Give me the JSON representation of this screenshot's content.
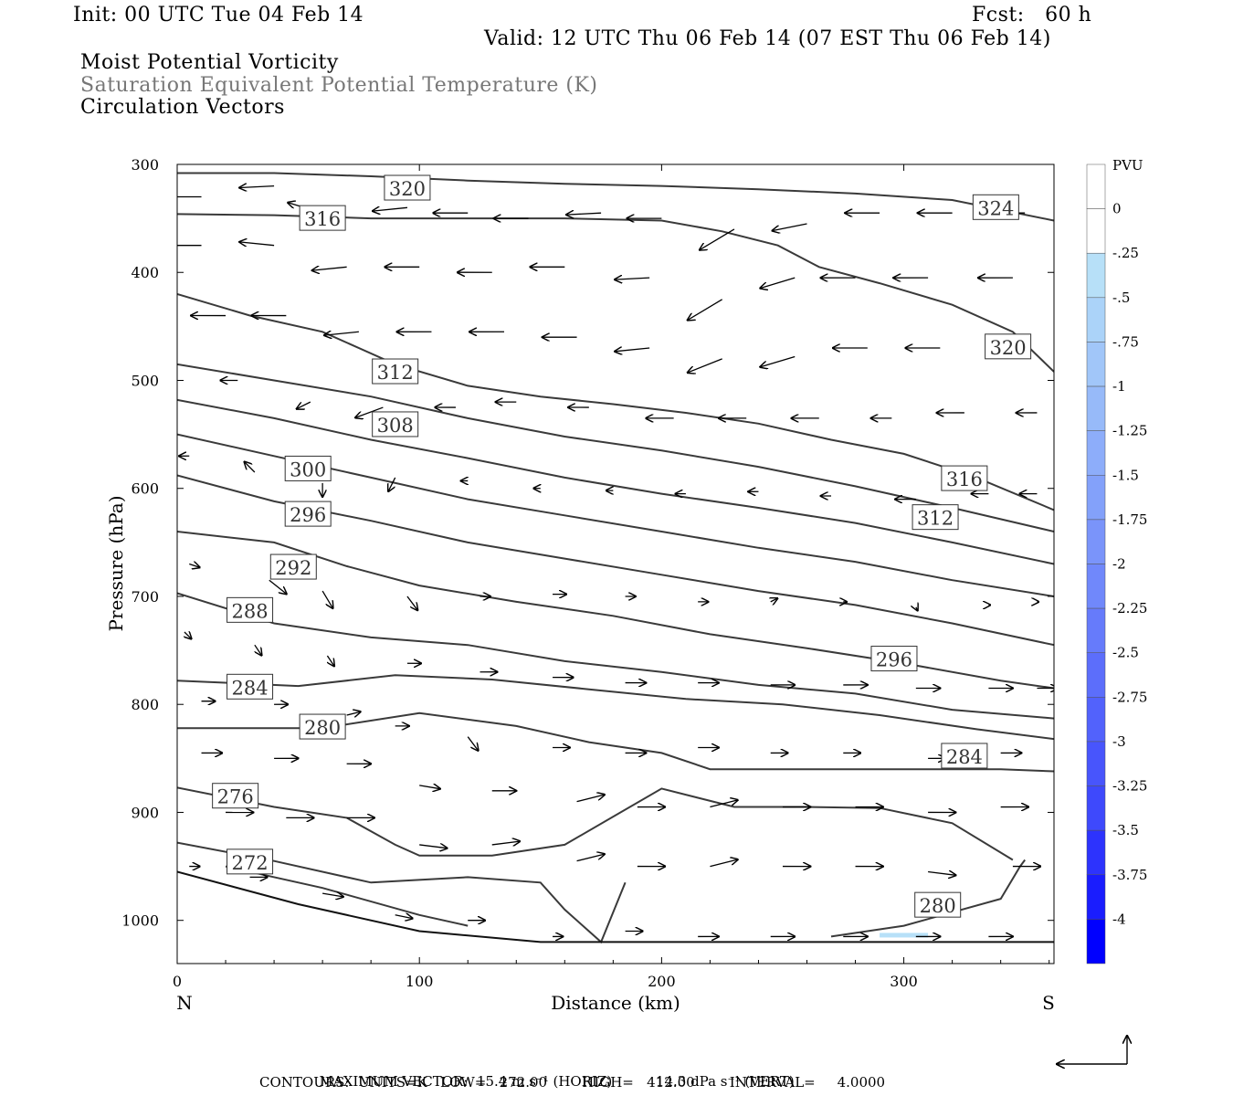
{
  "header": {
    "init": "Init: 00 UTC Tue 04 Feb 14",
    "fcst": "Fcst:   60 h",
    "valid": "Valid: 12 UTC Thu 06 Feb 14 (07 EST Thu 06 Feb 14)",
    "fields": [
      "Moist Potential Vorticity",
      "Saturation Equivalent Potential Temperature (K)",
      "Circulation Vectors"
    ]
  },
  "footer": {
    "max_vector_label": "MAXIMUM VECTOR:",
    "horiz": "15.4 m s⁻¹ (HORIZ)",
    "vert": "14.3 dPa s⁻¹ (VERT)",
    "contours": "CONTOURS:  UNITS=K   LOW=   272.00        HIGH=   412.00        INTERVAL=     4.0000"
  },
  "colors": {
    "contour": "#3a3a3a",
    "arrow": "#000000",
    "pv_light": "#b7e0f8",
    "pv_dark": "#0000ff"
  },
  "chart_data": {
    "type": "line",
    "title": "",
    "xlabel": "Distance (km)",
    "ylabel": "Pressure (hPa)",
    "xlim": [
      0,
      362
    ],
    "ylim": [
      1040,
      300
    ],
    "x_ticks": [
      0,
      100,
      200,
      300
    ],
    "y_ticks": [
      300,
      400,
      500,
      600,
      700,
      800,
      900,
      1000
    ],
    "x_end_labels": {
      "left": "N",
      "right": "S"
    },
    "colorbar": {
      "unit": "PVU",
      "labels": [
        "0",
        "-.25",
        "-.5",
        "-.75",
        "-1",
        "-1.25",
        "-1.5",
        "-1.75",
        "-2",
        "-2.25",
        "-2.5",
        "-2.75",
        "-3",
        "-3.25",
        "-3.5",
        "-3.75",
        "-4"
      ],
      "colors": [
        "#ffffff",
        "#ffffff",
        "#b7e0f8",
        "#abd3f9",
        "#a1c6f9",
        "#97baf9",
        "#8dadfa",
        "#83a1fa",
        "#7a94fa",
        "#7088fb",
        "#667bfb",
        "#5c6efb",
        "#5262fc",
        "#4855fc",
        "#3e49fc",
        "#2d33fd",
        "#1a1dfe",
        "#0000ff"
      ]
    },
    "contour_labels": [
      {
        "text": "320",
        "x": 95,
        "y": 322
      },
      {
        "text": "316",
        "x": 60,
        "y": 350
      },
      {
        "text": "324",
        "x": 338,
        "y": 340
      },
      {
        "text": "320",
        "x": 343,
        "y": 469
      },
      {
        "text": "312",
        "x": 90,
        "y": 492
      },
      {
        "text": "308",
        "x": 90,
        "y": 541
      },
      {
        "text": "300",
        "x": 54,
        "y": 582
      },
      {
        "text": "316",
        "x": 325,
        "y": 591
      },
      {
        "text": "296",
        "x": 54,
        "y": 624
      },
      {
        "text": "312",
        "x": 313,
        "y": 627
      },
      {
        "text": "292",
        "x": 48,
        "y": 673
      },
      {
        "text": "288",
        "x": 30,
        "y": 713
      },
      {
        "text": "296",
        "x": 296,
        "y": 758
      },
      {
        "text": "284",
        "x": 30,
        "y": 784
      },
      {
        "text": "280",
        "x": 60,
        "y": 821
      },
      {
        "text": "284",
        "x": 325,
        "y": 848
      },
      {
        "text": "276",
        "x": 24,
        "y": 885
      },
      {
        "text": "272",
        "x": 30,
        "y": 946
      },
      {
        "text": "280",
        "x": 314,
        "y": 986
      }
    ],
    "contours": [
      {
        "x": [
          0,
          40,
          80,
          120,
          160,
          200,
          240,
          280,
          320,
          362
        ],
        "y": [
          308,
          308,
          311,
          315,
          318,
          320,
          323,
          327,
          333,
          352
        ]
      },
      {
        "x": [
          0,
          40,
          80,
          120,
          160,
          200,
          225,
          248,
          265,
          290,
          320,
          345,
          362
        ],
        "y": [
          346,
          347,
          350,
          350,
          350,
          352,
          362,
          375,
          395,
          410,
          430,
          455,
          492
        ]
      },
      {
        "x": [
          0,
          30,
          60,
          90,
          120,
          150,
          180,
          210,
          240,
          270,
          300,
          330,
          362
        ],
        "y": [
          420,
          440,
          455,
          485,
          505,
          515,
          522,
          530,
          540,
          555,
          568,
          590,
          620
        ]
      },
      {
        "x": [
          0,
          40,
          80,
          120,
          160,
          200,
          240,
          280,
          320,
          362
        ],
        "y": [
          485,
          500,
          515,
          535,
          552,
          565,
          580,
          598,
          618,
          640
        ]
      },
      {
        "x": [
          0,
          40,
          80,
          120,
          160,
          200,
          240,
          280,
          320,
          362
        ],
        "y": [
          518,
          535,
          555,
          572,
          590,
          605,
          618,
          632,
          650,
          670
        ]
      },
      {
        "x": [
          0,
          40,
          80,
          120,
          160,
          200,
          240,
          280,
          320,
          362
        ],
        "y": [
          550,
          570,
          590,
          610,
          625,
          640,
          655,
          668,
          685,
          700
        ]
      },
      {
        "x": [
          0,
          40,
          80,
          120,
          160,
          200,
          240,
          280,
          320,
          362
        ],
        "y": [
          588,
          612,
          630,
          650,
          665,
          680,
          695,
          708,
          725,
          745
        ]
      },
      {
        "x": [
          0,
          40,
          70,
          100,
          140,
          180,
          220,
          260,
          300,
          340,
          362
        ],
        "y": [
          640,
          650,
          672,
          690,
          705,
          718,
          735,
          748,
          762,
          778,
          785
        ]
      },
      {
        "x": [
          0,
          40,
          80,
          120,
          160,
          200,
          240,
          280,
          320,
          362
        ],
        "y": [
          697,
          725,
          738,
          745,
          760,
          770,
          782,
          790,
          805,
          813
        ]
      },
      {
        "x": [
          0,
          50,
          90,
          130,
          170,
          210,
          250,
          290,
          330,
          362
        ],
        "y": [
          778,
          783,
          773,
          777,
          786,
          795,
          800,
          810,
          823,
          832
        ]
      },
      {
        "x": [
          0,
          60,
          100,
          140,
          170,
          200,
          220,
          260,
          300,
          340,
          362
        ],
        "y": [
          822,
          822,
          808,
          820,
          835,
          845,
          860,
          860,
          860,
          860,
          862
        ]
      },
      {
        "x": [
          0,
          40,
          70,
          90,
          100,
          130,
          160,
          200,
          230,
          260,
          290,
          320,
          345
        ],
        "y": [
          877,
          895,
          905,
          930,
          940,
          940,
          930,
          878,
          895,
          895,
          896,
          910,
          944
        ]
      },
      {
        "x": [
          0,
          40,
          80,
          120,
          150,
          160,
          175,
          185
        ],
        "y": [
          928,
          945,
          965,
          960,
          965,
          990,
          1020,
          965
        ]
      },
      {
        "x": [
          20,
          60,
          100,
          120
        ],
        "y": [
          950,
          970,
          995,
          1005
        ]
      }
    ],
    "ground": {
      "x": [
        0,
        50,
        100,
        150,
        200,
        250,
        300,
        362
      ],
      "y": [
        955,
        985,
        1010,
        1020,
        1020,
        1020,
        1020,
        1020
      ]
    },
    "closed_contour_280": {
      "x": [
        270,
        300,
        340,
        348,
        350
      ],
      "y": [
        1015,
        1005,
        980,
        950,
        944
      ]
    },
    "pv_patch": {
      "x": [
        290,
        310
      ],
      "y": [
        1015,
        1015
      ]
    },
    "vectors": [
      [
        10,
        330,
        -1,
        0
      ],
      [
        40,
        320,
        -1,
        0.05
      ],
      [
        60,
        345,
        -1,
        -0.3
      ],
      [
        95,
        340,
        -1,
        0.1
      ],
      [
        120,
        345,
        -1,
        0
      ],
      [
        145,
        350,
        -1,
        0
      ],
      [
        175,
        345,
        -1,
        0.05
      ],
      [
        200,
        350,
        -1,
        0
      ],
      [
        230,
        360,
        -1,
        0.6
      ],
      [
        260,
        355,
        -1,
        0.2
      ],
      [
        290,
        345,
        -1,
        0
      ],
      [
        320,
        345,
        -1,
        0
      ],
      [
        350,
        345,
        -1,
        0
      ],
      [
        10,
        375,
        -1,
        0
      ],
      [
        40,
        375,
        -1,
        -0.1
      ],
      [
        70,
        395,
        -1,
        0.1
      ],
      [
        100,
        395,
        -1,
        0
      ],
      [
        130,
        400,
        -1,
        0
      ],
      [
        160,
        395,
        -1,
        0
      ],
      [
        195,
        405,
        -1,
        0.05
      ],
      [
        225,
        425,
        -1,
        0.6
      ],
      [
        255,
        405,
        -1,
        0.3
      ],
      [
        280,
        405,
        -1,
        0
      ],
      [
        310,
        405,
        -1,
        0
      ],
      [
        345,
        405,
        -1,
        0
      ],
      [
        20,
        440,
        -1,
        0
      ],
      [
        45,
        440,
        -1,
        0
      ],
      [
        75,
        455,
        -1,
        0.1
      ],
      [
        105,
        455,
        -1,
        0
      ],
      [
        135,
        455,
        -1,
        0
      ],
      [
        165,
        460,
        -1,
        0
      ],
      [
        195,
        470,
        -1,
        0.1
      ],
      [
        225,
        480,
        -1,
        0.4
      ],
      [
        255,
        478,
        -1,
        0.3
      ],
      [
        285,
        470,
        -1,
        0
      ],
      [
        315,
        470,
        -1,
        0
      ],
      [
        350,
        470,
        -1,
        0
      ],
      [
        25,
        500,
        -0.5,
        0
      ],
      [
        55,
        520,
        -0.4,
        0.2
      ],
      [
        85,
        525,
        -0.8,
        0.3
      ],
      [
        115,
        525,
        -0.6,
        0
      ],
      [
        140,
        520,
        -0.6,
        0
      ],
      [
        170,
        525,
        -0.6,
        0
      ],
      [
        205,
        535,
        -0.8,
        0
      ],
      [
        235,
        535,
        -0.8,
        0
      ],
      [
        265,
        535,
        -0.8,
        0
      ],
      [
        295,
        535,
        -0.6,
        0
      ],
      [
        325,
        530,
        -0.8,
        0
      ],
      [
        355,
        530,
        -0.6,
        0
      ],
      [
        5,
        570,
        -0.3,
        0
      ],
      [
        32,
        585,
        -0.3,
        -0.3
      ],
      [
        60,
        595,
        0,
        0.4
      ],
      [
        90,
        590,
        -0.2,
        0.4
      ],
      [
        120,
        593,
        -0.2,
        0
      ],
      [
        150,
        600,
        -0.2,
        0
      ],
      [
        180,
        602,
        -0.2,
        0
      ],
      [
        210,
        605,
        -0.3,
        0
      ],
      [
        240,
        603,
        -0.3,
        0
      ],
      [
        270,
        607,
        -0.3,
        0
      ],
      [
        305,
        610,
        -0.6,
        0
      ],
      [
        335,
        605,
        -0.5,
        0
      ],
      [
        355,
        605,
        -0.5,
        0
      ],
      [
        5,
        670,
        0.3,
        0.1
      ],
      [
        38,
        685,
        0.5,
        0.4
      ],
      [
        60,
        695,
        0.3,
        0.5
      ],
      [
        95,
        700,
        0.3,
        0.4
      ],
      [
        125,
        700,
        0.3,
        0
      ],
      [
        155,
        698,
        0.4,
        0
      ],
      [
        185,
        700,
        0.3,
        0
      ],
      [
        215,
        705,
        0.3,
        0
      ],
      [
        245,
        705,
        0.2,
        -0.1
      ],
      [
        275,
        705,
        0.1,
        0
      ],
      [
        305,
        710,
        0.05,
        0.1
      ],
      [
        335,
        708,
        0.05,
        0
      ],
      [
        355,
        705,
        0.05,
        0
      ],
      [
        3,
        733,
        0.2,
        0.2
      ],
      [
        32,
        745,
        0.2,
        0.3
      ],
      [
        62,
        755,
        0.2,
        0.3
      ],
      [
        95,
        762,
        0.4,
        0
      ],
      [
        125,
        770,
        0.5,
        0
      ],
      [
        155,
        775,
        0.6,
        0
      ],
      [
        185,
        780,
        0.6,
        0
      ],
      [
        215,
        780,
        0.6,
        0
      ],
      [
        245,
        782,
        0.7,
        0
      ],
      [
        275,
        782,
        0.7,
        0
      ],
      [
        305,
        785,
        0.7,
        0
      ],
      [
        335,
        785,
        0.7,
        0
      ],
      [
        355,
        785,
        0.6,
        0
      ],
      [
        10,
        797,
        0.4,
        0
      ],
      [
        40,
        800,
        0.4,
        0
      ],
      [
        70,
        810,
        0.4,
        -0.1
      ],
      [
        90,
        820,
        0.4,
        0
      ],
      [
        120,
        830,
        0.3,
        0.4
      ],
      [
        155,
        840,
        0.5,
        0
      ],
      [
        185,
        845,
        0.6,
        0
      ],
      [
        215,
        840,
        0.6,
        0
      ],
      [
        245,
        845,
        0.5,
        0
      ],
      [
        275,
        845,
        0.5,
        0
      ],
      [
        310,
        850,
        0.5,
        0
      ],
      [
        340,
        845,
        0.6,
        0
      ],
      [
        10,
        845,
        0.6,
        0
      ],
      [
        40,
        850,
        0.7,
        0
      ],
      [
        70,
        855,
        0.7,
        0
      ],
      [
        100,
        875,
        0.6,
        0.1
      ],
      [
        130,
        880,
        0.7,
        0
      ],
      [
        165,
        890,
        0.8,
        -0.2
      ],
      [
        190,
        895,
        0.8,
        0
      ],
      [
        220,
        895,
        0.8,
        -0.2
      ],
      [
        250,
        895,
        0.8,
        0
      ],
      [
        280,
        895,
        0.8,
        0
      ],
      [
        310,
        900,
        0.8,
        0
      ],
      [
        340,
        895,
        0.8,
        0
      ],
      [
        20,
        900,
        0.8,
        0
      ],
      [
        45,
        905,
        0.8,
        0
      ],
      [
        70,
        905,
        0.8,
        0
      ],
      [
        100,
        930,
        0.8,
        0.1
      ],
      [
        130,
        930,
        0.8,
        -0.1
      ],
      [
        165,
        945,
        0.8,
        -0.2
      ],
      [
        190,
        950,
        0.8,
        0
      ],
      [
        220,
        950,
        0.8,
        -0.2
      ],
      [
        250,
        950,
        0.8,
        0
      ],
      [
        280,
        950,
        0.8,
        0
      ],
      [
        310,
        955,
        0.8,
        0.1
      ],
      [
        345,
        950,
        0.8,
        0
      ],
      [
        5,
        950,
        0.3,
        0
      ],
      [
        30,
        960,
        0.5,
        0
      ],
      [
        60,
        975,
        0.6,
        0.1
      ],
      [
        90,
        995,
        0.5,
        0.1
      ],
      [
        120,
        1000,
        0.5,
        0
      ],
      [
        155,
        1015,
        0.3,
        0
      ],
      [
        185,
        1010,
        0.5,
        0
      ],
      [
        215,
        1015,
        0.6,
        0
      ],
      [
        245,
        1015,
        0.7,
        0
      ],
      [
        275,
        1015,
        0.7,
        0
      ],
      [
        305,
        1015,
        0.7,
        0
      ],
      [
        335,
        1015,
        0.7,
        0
      ]
    ]
  }
}
